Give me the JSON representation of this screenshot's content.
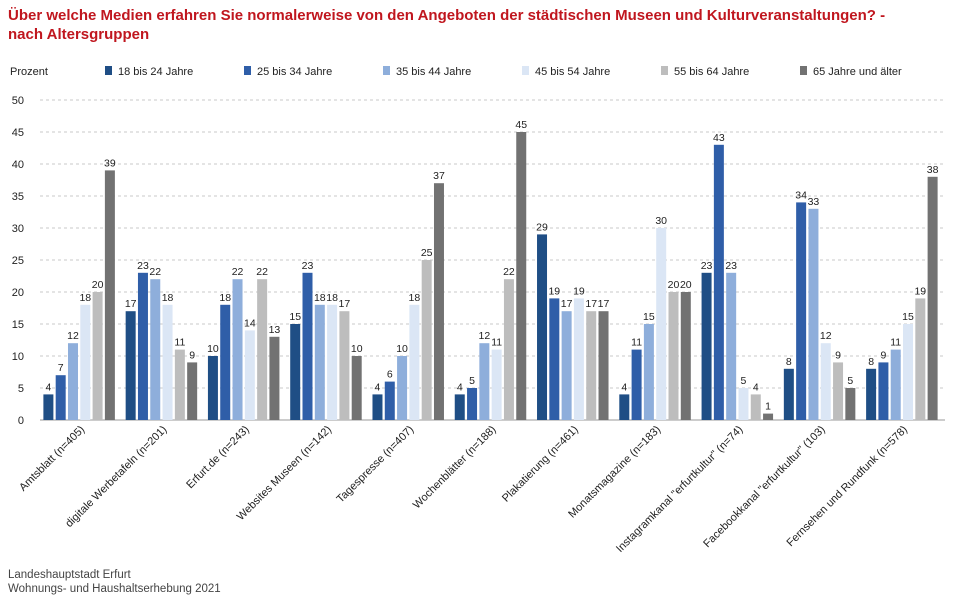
{
  "chart_data": {
    "type": "bar",
    "title": "Über welche Medien erfahren Sie normalerweise von den Angeboten der städtischen Museen und Kulturveranstaltungen? - nach Altersgruppen",
    "ylabel": "Prozent",
    "xlabel": "",
    "ylim": [
      0,
      50
    ],
    "yticks": [
      0,
      5,
      10,
      15,
      20,
      25,
      30,
      35,
      40,
      45,
      50
    ],
    "grid": true,
    "legend": "top",
    "categories": [
      "Amtsblatt (n=405)",
      "digitale Werbetafeln (n=201)",
      "Erfurt.de (n=243)",
      "Websites Museen (n=142)",
      "Tagespresse (n=407)",
      "Wochenblätter (n=188)",
      "Plakatierung (n=461)",
      "Monatsmagazine (n=183)",
      "Instagramkanal \"erfurtkultur\" (n=74)",
      "Facebookkanal \"erfurtkultur\" (103)",
      "Fernsehen und Rundfunk (n=578)"
    ],
    "series": [
      {
        "name": "18 bis 24 Jahre",
        "color": "#1f4e85",
        "values": [
          4,
          17,
          10,
          15,
          4,
          4,
          29,
          4,
          23,
          8,
          8
        ]
      },
      {
        "name": "25 bis 34 Jahre",
        "color": "#2f5ea8",
        "values": [
          7,
          23,
          18,
          23,
          6,
          5,
          19,
          11,
          43,
          34,
          9
        ]
      },
      {
        "name": "35 bis 44 Jahre",
        "color": "#8eaedb",
        "values": [
          12,
          22,
          22,
          18,
          10,
          12,
          17,
          15,
          23,
          33,
          11
        ]
      },
      {
        "name": "45 bis 54 Jahre",
        "color": "#dbe6f5",
        "values": [
          18,
          18,
          14,
          18,
          18,
          11,
          19,
          30,
          5,
          12,
          15
        ]
      },
      {
        "name": "55 bis 64 Jahre",
        "color": "#bdbdbd",
        "values": [
          20,
          11,
          22,
          17,
          25,
          22,
          17,
          20,
          4,
          9,
          19
        ]
      },
      {
        "name": "65 Jahre und älter",
        "color": "#727272",
        "values": [
          39,
          9,
          13,
          10,
          37,
          45,
          17,
          20,
          1,
          5,
          38
        ]
      }
    ]
  },
  "footer": {
    "line1": "Landeshauptstadt Erfurt",
    "line2": "Wohnungs- und Haushaltserhebung 2021"
  }
}
